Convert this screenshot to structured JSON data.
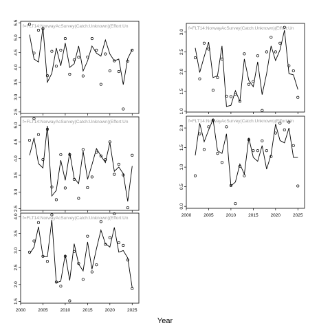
{
  "figure": {
    "xlabel": "Year"
  },
  "chart_data": [
    {
      "type": "line",
      "panel": "top-left",
      "label": "f=FLT14:NorwayAcSurvey(Catch:Unknown)(Effort:Un",
      "xlim": [
        2000,
        2026.5
      ],
      "ylim": [
        2.45,
        5.55
      ],
      "xticks": [
        2000,
        2005,
        2010,
        2015,
        2020,
        2025
      ],
      "show_xticklabels": false,
      "yticks": [
        2.5,
        3.0,
        3.5,
        4.0,
        4.5,
        5.0,
        5.5
      ],
      "ytick_labels": [
        "2.5",
        "3.0",
        "3.5",
        "4.0",
        "4.5",
        "5.0",
        "5.5"
      ],
      "x": [
        2002,
        2003,
        2004,
        2005,
        2006,
        2007,
        2008,
        2009,
        2010,
        2011,
        2012,
        2013,
        2014,
        2015,
        2016,
        2017,
        2018,
        2019,
        2020,
        2021,
        2022,
        2023,
        2024,
        2025
      ],
      "observed": [
        5.45,
        4.48,
        5.25,
        5.3,
        3.72,
        4.54,
        4.04,
        4.58,
        4.97,
        3.77,
        4.25,
        4.34,
        3.71,
        4.35,
        4.97,
        4.58,
        3.43,
        4.45,
        3.88,
        4.22,
        3.86,
        2.6,
        4.21,
        4.58
      ],
      "fitted": [
        5.1,
        4.28,
        4.18,
        5.35,
        3.5,
        3.8,
        4.65,
        4.05,
        4.82,
        4.0,
        4.12,
        4.72,
        3.88,
        4.22,
        4.72,
        4.48,
        4.38,
        4.92,
        4.45,
        4.22,
        4.28,
        3.42,
        4.3,
        4.6
      ]
    },
    {
      "type": "line",
      "panel": "top-right",
      "label": "f=FLT14:NorwayAcSurvey(Catch:Unknown)(Effort:Un",
      "xlim": [
        2000,
        2026.5
      ],
      "ylim": [
        0.98,
        3.22
      ],
      "xticks": [
        2000,
        2005,
        2010,
        2015,
        2020,
        2025
      ],
      "show_xticklabels": false,
      "yticks": [
        1.0,
        1.5,
        2.0,
        2.5,
        3.0
      ],
      "ytick_labels": [
        "1.0",
        "1.5",
        "2.0",
        "2.5",
        "3.0"
      ],
      "x": [
        2002,
        2003,
        2004,
        2005,
        2006,
        2007,
        2008,
        2009,
        2010,
        2011,
        2012,
        2013,
        2014,
        2015,
        2016,
        2017,
        2018,
        2019,
        2020,
        2021,
        2022,
        2023,
        2024,
        2025
      ],
      "observed": [
        2.35,
        1.82,
        2.72,
        2.57,
        1.53,
        1.85,
        2.32,
        1.38,
        1.37,
        1.43,
        1.25,
        2.45,
        1.68,
        1.75,
        2.4,
        1.02,
        2.5,
        2.87,
        2.5,
        2.72,
        3.12,
        2.15,
        2.02,
        1.35
      ],
      "fitted": [
        2.6,
        1.98,
        2.38,
        2.75,
        1.85,
        1.9,
        2.65,
        1.12,
        1.15,
        1.52,
        1.25,
        2.32,
        1.78,
        1.62,
        2.25,
        1.42,
        1.95,
        2.65,
        2.28,
        2.55,
        3.05,
        1.95,
        1.92,
        1.55
      ]
    },
    {
      "type": "line",
      "panel": "middle-left",
      "label": "f=FLT14:NorwayAcSurvey(Catch:Unknown)(Effort:Un",
      "xlim": [
        2000,
        2026.5
      ],
      "ylim": [
        2.45,
        5.25
      ],
      "xticks": [
        2000,
        2005,
        2010,
        2015,
        2020,
        2025
      ],
      "show_xticklabels": false,
      "yticks": [
        2.5,
        3.0,
        3.5,
        4.0,
        4.5,
        5.0
      ],
      "ytick_labels": [
        "2.5",
        "3.0",
        "3.5",
        "4.0",
        "4.5",
        "5.0"
      ],
      "x": [
        2002,
        2003,
        2004,
        2005,
        2006,
        2007,
        2008,
        2009,
        2010,
        2011,
        2012,
        2013,
        2014,
        2015,
        2016,
        2017,
        2018,
        2019,
        2020,
        2021,
        2022,
        2023,
        2024,
        2025
      ],
      "observed": [
        4.55,
        5.2,
        4.72,
        3.97,
        4.88,
        3.15,
        2.77,
        4.12,
        3.12,
        4.12,
        3.38,
        2.81,
        4.27,
        3.13,
        3.45,
        4.19,
        4.08,
        3.97,
        4.5,
        3.53,
        3.83,
        3.51,
        2.53,
        4.1
      ],
      "fitted": [
        4.1,
        4.62,
        3.85,
        3.72,
        4.98,
        2.88,
        3.05,
        3.95,
        3.35,
        4.18,
        3.42,
        3.25,
        4.22,
        3.38,
        3.82,
        4.3,
        4.08,
        3.88,
        4.48,
        3.62,
        3.75,
        3.55,
        2.72,
        3.78
      ]
    },
    {
      "type": "line",
      "panel": "middle-right",
      "label": "f=FLT14:NorwayAcSurvey(Catch:Unknown)(Effort:Un",
      "xlim": [
        2000,
        2026.5
      ],
      "ylim": [
        -0.05,
        2.3
      ],
      "xticks": [
        2000,
        2005,
        2010,
        2015,
        2020,
        2025
      ],
      "show_xticklabels": true,
      "xtick_labels": [
        "2000",
        "2005",
        "2010",
        "2015",
        "2020",
        "2025"
      ],
      "yticks": [
        0.0,
        0.5,
        1.0,
        1.5,
        2.0
      ],
      "ytick_labels": [
        "0.0",
        "0.5",
        "1.0",
        "1.5",
        "2.0"
      ],
      "x": [
        2002,
        2003,
        2004,
        2005,
        2006,
        2007,
        2008,
        2009,
        2010,
        2011,
        2012,
        2013,
        2014,
        2015,
        2016,
        2017,
        2018,
        2019,
        2020,
        2021,
        2022,
        2023,
        2024,
        2025
      ],
      "observed": [
        0.78,
        1.85,
        1.45,
        2.03,
        2.2,
        1.35,
        1.12,
        2.03,
        0.53,
        0.07,
        1.02,
        0.78,
        1.7,
        1.42,
        1.42,
        1.67,
        1.42,
        1.27,
        1.87,
        2.12,
        1.95,
        2.15,
        1.55,
        0.52
      ],
      "fitted": [
        1.3,
        2.12,
        1.65,
        1.95,
        2.22,
        1.42,
        1.35,
        1.85,
        0.52,
        0.62,
        1.08,
        0.82,
        1.75,
        1.25,
        1.15,
        1.55,
        0.95,
        1.32,
        2.1,
        1.68,
        1.62,
        2.0,
        1.25,
        1.25
      ]
    },
    {
      "type": "line",
      "panel": "bottom-left",
      "label": "f=FLT14:NorwayAcSurvey(Catch:Unknown)(Effort:Un",
      "xlim": [
        2000,
        2026.5
      ],
      "ylim": [
        1.45,
        4.1
      ],
      "xticks": [
        2000,
        2005,
        2010,
        2015,
        2020,
        2025
      ],
      "show_xticklabels": true,
      "xtick_labels": [
        "2000",
        "2005",
        "2010",
        "2015",
        "2020",
        "2025"
      ],
      "yticks": [
        1.5,
        2.0,
        2.5,
        3.0,
        3.5,
        4.0
      ],
      "ytick_labels": [
        "1.5",
        "2.0",
        "2.5",
        "3.0",
        "3.5",
        "4.0"
      ],
      "x": [
        2002,
        2003,
        2004,
        2005,
        2006,
        2007,
        2008,
        2009,
        2010,
        2011,
        2012,
        2013,
        2014,
        2015,
        2016,
        2017,
        2018,
        2019,
        2020,
        2021,
        2022,
        2023,
        2024,
        2025
      ],
      "observed": [
        2.95,
        3.28,
        3.82,
        2.83,
        2.68,
        4.05,
        2.07,
        1.95,
        2.83,
        1.52,
        2.97,
        2.62,
        2.15,
        3.42,
        2.37,
        2.58,
        3.85,
        3.18,
        3.38,
        4.08,
        3.23,
        3.15,
        2.72,
        1.88
      ],
      "fitted": [
        2.9,
        3.1,
        3.7,
        2.82,
        2.82,
        3.9,
        2.05,
        2.1,
        2.88,
        2.12,
        3.2,
        2.6,
        2.4,
        3.25,
        2.45,
        3.05,
        3.6,
        3.2,
        3.1,
        3.68,
        2.95,
        3.0,
        2.78,
        1.9
      ]
    }
  ]
}
